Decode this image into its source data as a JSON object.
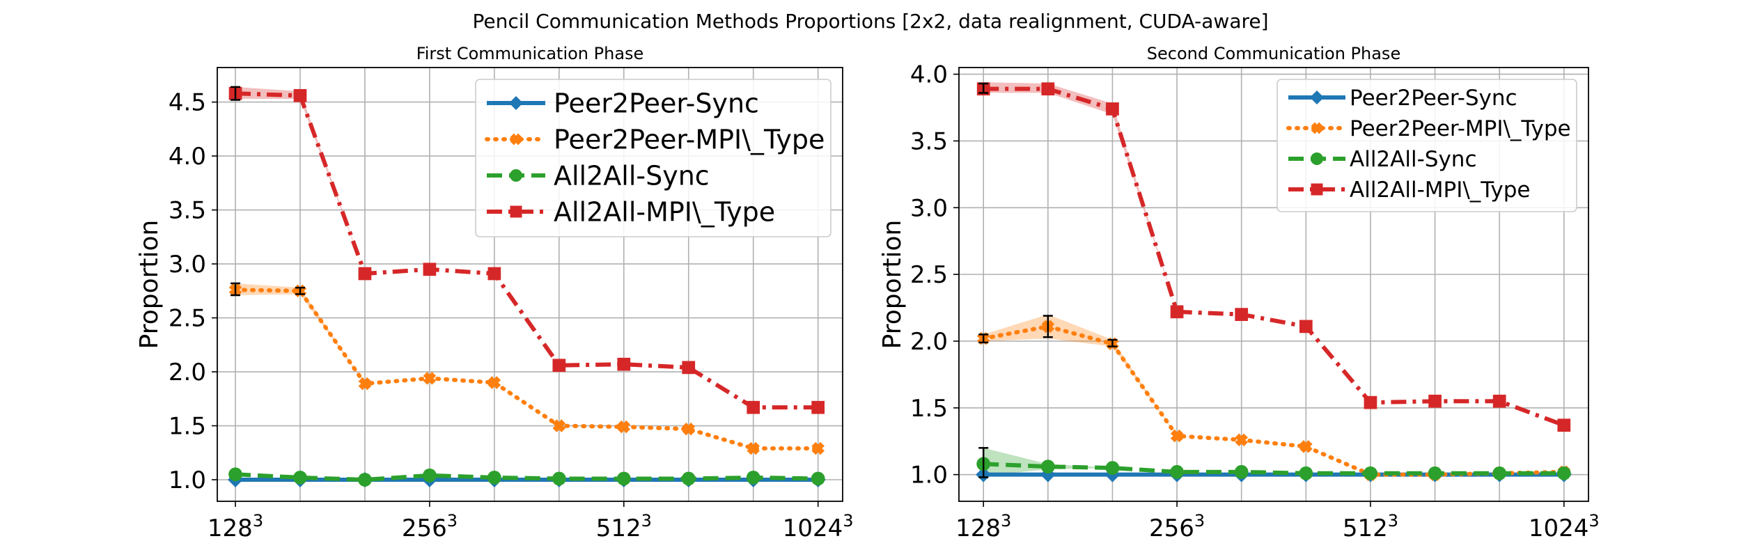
{
  "figure_title": "Pencil Communication Methods Proportions [2x2, data realignment, CUDA-aware]",
  "colors": {
    "Peer2Peer-Sync": "#1f77b4",
    "Peer2Peer-MPI\\_Type": "#ff7f0e",
    "All2All-Sync": "#2ca02c",
    "All2All-MPI\\_Type": "#d62728"
  },
  "chart_data": [
    {
      "type": "line",
      "title": "First Communication Phase",
      "ylabel": "Proportion",
      "xlabel": "",
      "x": [
        1,
        2,
        3,
        4,
        5,
        6,
        7,
        8,
        9,
        10
      ],
      "xlim": [
        0.72,
        10.38
      ],
      "ylim": [
        0.8,
        4.82
      ],
      "x_ticks": [
        {
          "pos": 1,
          "base": "128",
          "exp": "3"
        },
        {
          "pos": 4,
          "base": "256",
          "exp": "3"
        },
        {
          "pos": 7,
          "base": "512",
          "exp": "3"
        },
        {
          "pos": 10,
          "base": "1024",
          "exp": "3"
        }
      ],
      "y_ticks": [
        1.0,
        1.5,
        2.0,
        2.5,
        3.0,
        3.5,
        4.0,
        4.5
      ],
      "y_tick_labels": [
        "1.0",
        "1.5",
        "2.0",
        "2.5",
        "3.0",
        "3.5",
        "4.0",
        "4.5"
      ],
      "grid": true,
      "legend": {
        "placement": "upper-right"
      },
      "series": [
        {
          "name": "Peer2Peer-Sync",
          "values": [
            1.0,
            1.0,
            1.0,
            1.0,
            1.0,
            1.0,
            1.0,
            1.0,
            1.0,
            1.0
          ],
          "marker": "diamond",
          "dash": "solid"
        },
        {
          "name": "Peer2Peer-MPI\\_Type",
          "values": [
            2.76,
            2.75,
            1.89,
            1.94,
            1.9,
            1.5,
            1.49,
            1.47,
            1.29,
            1.29
          ],
          "marker": "x",
          "dash": "dotted",
          "band": [
            [
              2.71,
              2.82
            ],
            [
              2.72,
              2.78
            ],
            null,
            null,
            null,
            null,
            null,
            null,
            null,
            null
          ],
          "errbar": [
            [
              2.71,
              2.82
            ],
            [
              2.72,
              2.78
            ],
            null,
            null,
            null,
            null,
            null,
            null,
            null,
            null
          ]
        },
        {
          "name": "All2All-Sync",
          "values": [
            1.05,
            1.02,
            1.0,
            1.04,
            1.02,
            1.01,
            1.01,
            1.01,
            1.02,
            1.01
          ],
          "marker": "circle",
          "dash": "dashed"
        },
        {
          "name": "All2All-MPI\\_Type",
          "values": [
            4.58,
            4.56,
            2.91,
            2.95,
            2.91,
            2.06,
            2.07,
            2.04,
            1.67,
            1.67
          ],
          "marker": "square",
          "dash": "dashdot",
          "band": [
            [
              4.53,
              4.64
            ],
            [
              4.53,
              4.6
            ],
            null,
            null,
            null,
            null,
            null,
            null,
            null,
            null
          ],
          "errbar": [
            [
              4.52,
              4.64
            ],
            null,
            null,
            null,
            null,
            null,
            null,
            null,
            null,
            null
          ]
        }
      ]
    },
    {
      "type": "line",
      "title": "Second Communication Phase",
      "ylabel": "Proportion",
      "xlabel": "",
      "x": [
        1,
        2,
        3,
        4,
        5,
        6,
        7,
        8,
        9,
        10
      ],
      "xlim": [
        0.62,
        10.38
      ],
      "ylim": [
        0.8,
        4.05
      ],
      "x_ticks": [
        {
          "pos": 1,
          "base": "128",
          "exp": "3"
        },
        {
          "pos": 4,
          "base": "256",
          "exp": "3"
        },
        {
          "pos": 7,
          "base": "512",
          "exp": "3"
        },
        {
          "pos": 10,
          "base": "1024",
          "exp": "3"
        }
      ],
      "y_ticks": [
        1.0,
        1.5,
        2.0,
        2.5,
        3.0,
        3.5,
        4.0
      ],
      "y_tick_labels": [
        "1.0",
        "1.5",
        "2.0",
        "2.5",
        "3.0",
        "3.5",
        "4.0"
      ],
      "grid": true,
      "legend": {
        "placement": "upper-right"
      },
      "series": [
        {
          "name": "Peer2Peer-Sync",
          "values": [
            1.0,
            1.0,
            1.0,
            1.0,
            1.0,
            1.0,
            1.0,
            1.0,
            1.0,
            1.0
          ],
          "marker": "diamond",
          "dash": "solid"
        },
        {
          "name": "Peer2Peer-MPI\\_Type",
          "values": [
            2.02,
            2.11,
            1.98,
            1.29,
            1.26,
            1.21,
            1.0,
            1.0,
            1.01,
            1.02
          ],
          "marker": "x",
          "dash": "dotted",
          "band": [
            [
              2.0,
              2.05
            ],
            [
              2.02,
              2.2
            ],
            [
              1.96,
              2.01
            ],
            null,
            null,
            null,
            null,
            null,
            null,
            null
          ],
          "errbar": [
            [
              1.99,
              2.05
            ],
            [
              2.03,
              2.19
            ],
            [
              1.96,
              2.01
            ],
            null,
            null,
            null,
            null,
            null,
            null,
            null
          ]
        },
        {
          "name": "All2All-Sync",
          "values": [
            1.08,
            1.06,
            1.05,
            1.02,
            1.02,
            1.01,
            1.01,
            1.01,
            1.01,
            1.01
          ],
          "marker": "circle",
          "dash": "dashed",
          "band": [
            [
              0.99,
              1.2
            ],
            [
              1.04,
              1.08
            ],
            null,
            null,
            null,
            null,
            null,
            null,
            null,
            null
          ],
          "errbar": [
            [
              0.98,
              1.2
            ],
            null,
            null,
            null,
            null,
            null,
            null,
            null,
            null,
            null
          ]
        },
        {
          "name": "All2All-MPI\\_Type",
          "values": [
            3.89,
            3.89,
            3.74,
            2.22,
            2.2,
            2.11,
            1.54,
            1.55,
            1.55,
            1.37
          ],
          "marker": "square",
          "dash": "dashdot",
          "band": [
            [
              3.86,
              3.94
            ],
            [
              3.86,
              3.93
            ],
            [
              3.7,
              3.78
            ],
            null,
            null,
            null,
            null,
            null,
            null,
            null
          ],
          "errbar": [
            [
              3.86,
              3.93
            ],
            null,
            null,
            null,
            null,
            null,
            null,
            null,
            null,
            null
          ]
        }
      ]
    }
  ]
}
